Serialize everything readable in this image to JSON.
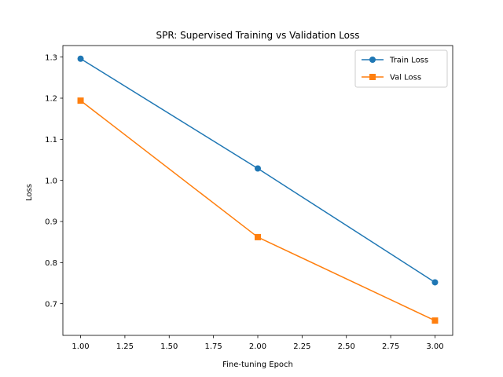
{
  "chart_data": {
    "type": "line",
    "title": "SPR: Supervised Training vs Validation Loss",
    "xlabel": "Fine-tuning Epoch",
    "ylabel": "Loss",
    "x": [
      1,
      2,
      3
    ],
    "xlim": [
      0.9,
      3.1
    ],
    "ylim": [
      0.623,
      1.328
    ],
    "xticks": [
      "1.00",
      "1.25",
      "1.50",
      "1.75",
      "2.00",
      "2.25",
      "2.50",
      "2.75",
      "3.00"
    ],
    "yticks": [
      "0.7",
      "0.8",
      "0.9",
      "1.0",
      "1.1",
      "1.2",
      "1.3"
    ],
    "grid": false,
    "legend_position": "top-right",
    "series": [
      {
        "name": "Train Loss",
        "values": [
          1.296,
          1.029,
          0.752
        ],
        "color": "#1f77b4",
        "marker": "circle"
      },
      {
        "name": "Val Loss",
        "values": [
          1.194,
          0.862,
          0.659
        ],
        "color": "#ff7f0e",
        "marker": "square"
      }
    ]
  }
}
